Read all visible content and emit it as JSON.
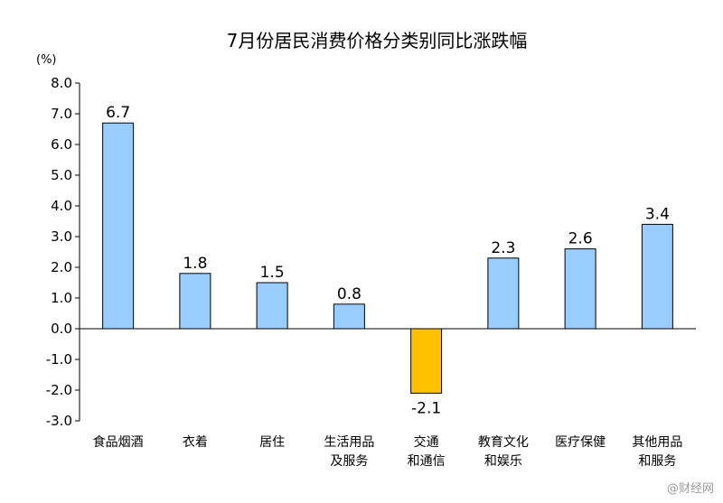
{
  "chart_data": {
    "type": "bar",
    "title": "7月份居民消费价格分类别同比涨跌幅",
    "unit_label": "(%)",
    "categories": [
      [
        "食品烟酒"
      ],
      [
        "衣着"
      ],
      [
        "居住"
      ],
      [
        "生活用品",
        "及服务"
      ],
      [
        "交通",
        "和通信"
      ],
      [
        "教育文化",
        "和娱乐"
      ],
      [
        "医疗保健"
      ],
      [
        "其他用品",
        "和服务"
      ]
    ],
    "values": [
      6.7,
      1.8,
      1.5,
      0.8,
      -2.1,
      2.3,
      2.6,
      3.4
    ],
    "data_labels": [
      "6.7",
      "1.8",
      "1.5",
      "0.8",
      "-2.1",
      "2.3",
      "2.6",
      "3.4"
    ],
    "ylim": [
      -3.0,
      8.0
    ],
    "yticks": [
      "8.0",
      "7.0",
      "6.0",
      "5.0",
      "4.0",
      "3.0",
      "2.0",
      "1.0",
      "0.0",
      "-1.0",
      "-2.0",
      "-3.0"
    ],
    "ytick_values": [
      8,
      7,
      6,
      5,
      4,
      3,
      2,
      1,
      0,
      -1,
      -2,
      -3
    ],
    "grid": false,
    "colors": {
      "positive": "#99ccff",
      "negative": "#ffc000",
      "bar_outline": "#000000",
      "axis": "#000000"
    }
  },
  "watermark": "@财经网"
}
